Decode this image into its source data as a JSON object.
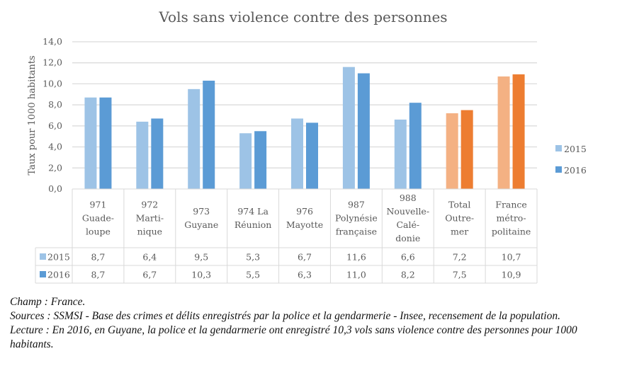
{
  "chart_data": {
    "type": "bar",
    "title": "Vols sans violence contre des personnes",
    "xlabel": "",
    "ylabel": "Taux pour 1000 habitants",
    "ylim": [
      0,
      14
    ],
    "yticks": [
      "0,0",
      "2,0",
      "4,0",
      "6,0",
      "8,0",
      "10,0",
      "12,0",
      "14,0"
    ],
    "ytick_values": [
      0,
      2,
      4,
      6,
      8,
      10,
      12,
      14
    ],
    "grid": true,
    "legend_position": "right",
    "categories": [
      [
        "971",
        "Guade-",
        "loupe"
      ],
      [
        "972",
        "Marti-",
        "nique"
      ],
      [
        "973",
        "Guyane"
      ],
      [
        "974 La",
        "Réunion"
      ],
      [
        "976",
        "Mayotte"
      ],
      [
        "987",
        "Polynésie",
        "française"
      ],
      [
        "988",
        "Nouvelle-",
        "Calé-",
        "donie"
      ],
      [
        "Total",
        "Outre-",
        "mer"
      ],
      [
        "France",
        "métro-",
        "politaine"
      ]
    ],
    "series": [
      {
        "name": "2015",
        "color": "#9DC3E6",
        "highlight_color": "#F4B183",
        "values": [
          8.7,
          6.4,
          9.5,
          5.3,
          6.7,
          11.6,
          6.6,
          7.2,
          10.7
        ],
        "labels": [
          "8,7",
          "6,4",
          "9,5",
          "5,3",
          "6,7",
          "11,6",
          "6,6",
          "7,2",
          "10,7"
        ]
      },
      {
        "name": "2016",
        "color": "#5B9BD5",
        "highlight_color": "#ED7D31",
        "values": [
          8.7,
          6.7,
          10.3,
          5.5,
          6.3,
          11.0,
          8.2,
          7.5,
          10.9
        ],
        "labels": [
          "8,7",
          "6,7",
          "10,3",
          "5,5",
          "6,3",
          "11,0",
          "8,2",
          "7,5",
          "10,9"
        ]
      }
    ],
    "highlighted_categories": [
      7,
      8
    ],
    "data_table": true
  },
  "notes": {
    "champ": "Champ : France.",
    "sources": "Sources  : SSMSI - Base des crimes et délits enregistrés par la police et la gendarmerie - Insee, recensement de la population.",
    "lecture": "Lecture : En 2016, en Guyane, la police et la gendarmerie ont enregistré 10,3 vols sans violence contre des personnes pour 1000 habitants."
  }
}
